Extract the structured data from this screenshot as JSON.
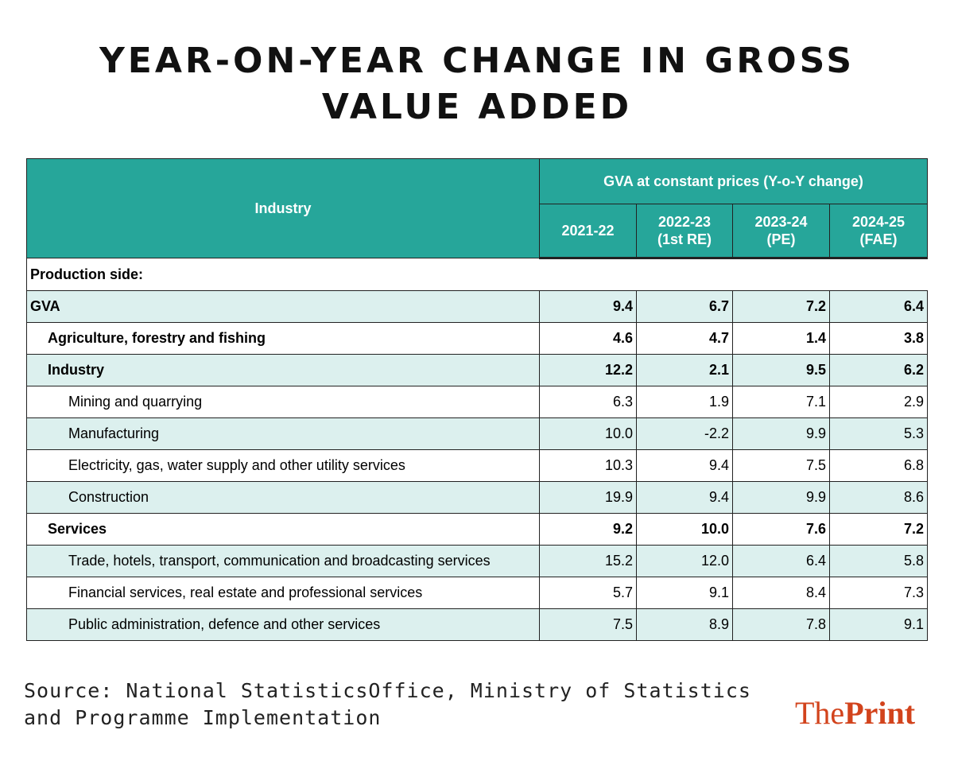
{
  "title_line1": "YEAR-ON-YEAR CHANGE IN GROSS",
  "title_line2": "VALUE ADDED",
  "table": {
    "industry_header": "Industry",
    "group_header": "GVA at constant prices (Y-o-Y change)",
    "years": [
      {
        "line1": "2021-22",
        "line2": ""
      },
      {
        "line1": "2022-23",
        "line2": "(1st RE)"
      },
      {
        "line1": "2023-24",
        "line2": "(PE)"
      },
      {
        "line1": "2024-25",
        "line2": "(FAE)"
      }
    ],
    "section_label": "Production side:",
    "rows": [
      {
        "label": "GVA",
        "values": [
          "9.4",
          "6.7",
          "7.2",
          "6.4"
        ]
      },
      {
        "label": "Agriculture, forestry and fishing",
        "values": [
          "4.6",
          "4.7",
          "1.4",
          "3.8"
        ]
      },
      {
        "label": "Industry",
        "values": [
          "12.2",
          "2.1",
          "9.5",
          "6.2"
        ]
      },
      {
        "label": "Mining and quarrying",
        "values": [
          "6.3",
          "1.9",
          "7.1",
          "2.9"
        ]
      },
      {
        "label": "Manufacturing",
        "values": [
          "10.0",
          "-2.2",
          "9.9",
          "5.3"
        ]
      },
      {
        "label": "Electricity, gas, water supply and other utility services",
        "values": [
          "10.3",
          "9.4",
          "7.5",
          "6.8"
        ]
      },
      {
        "label": "Construction",
        "values": [
          "19.9",
          "9.4",
          "9.9",
          "8.6"
        ]
      },
      {
        "label": "Services",
        "values": [
          "9.2",
          "10.0",
          "7.6",
          "7.2"
        ]
      },
      {
        "label": "Trade, hotels, transport, communication and broadcasting services",
        "values": [
          "15.2",
          "12.0",
          "6.4",
          "5.8"
        ]
      },
      {
        "label": "Financial services, real estate and professional services",
        "values": [
          "5.7",
          "9.1",
          "8.4",
          "7.3"
        ]
      },
      {
        "label": "Public administration, defence and other services",
        "values": [
          "7.5",
          "8.9",
          "7.8",
          "9.1"
        ]
      }
    ]
  },
  "source_line1": "Source: National StatisticsOffice, Ministry of Statistics",
  "source_line2": "and Programme Implementation",
  "logo": {
    "part1": "The",
    "part2": "Print"
  },
  "colors": {
    "header": "#26a69a",
    "shade": "#dcf0ee",
    "logo": "#d2431c"
  }
}
